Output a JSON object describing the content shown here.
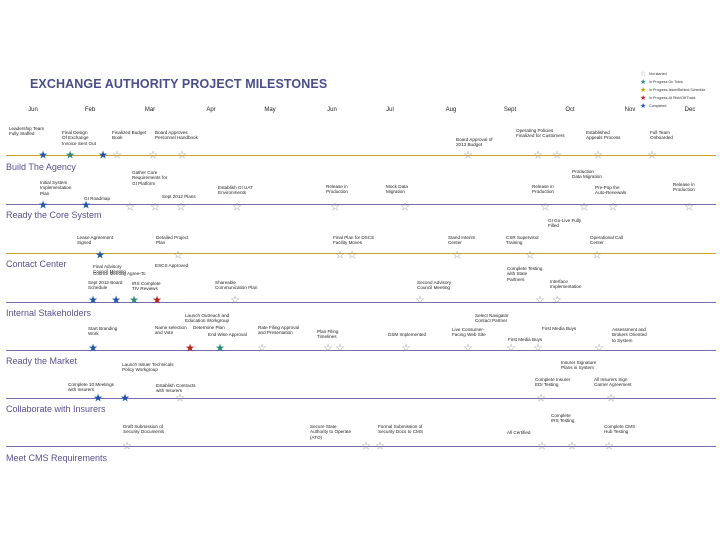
{
  "title": "EXCHANGE AUTHORITY PROJECT MILESTONES",
  "months": [
    "Jun",
    "Feb",
    "Mar",
    "Apr",
    "May",
    "Jun",
    "Jul",
    "Aug",
    "Sept",
    "Oct",
    "Nov",
    "Dec"
  ],
  "colors": {
    "title": "#4a4e8a",
    "lane_text": "#5c4f8c",
    "line_gold": "#c9a227",
    "line_purple": "#7a6aa8",
    "blue": "#1f56a8",
    "red": "#c0201a",
    "teal": "#2a8a78",
    "gold": "#c8a000",
    "empty": "#8e8e8e"
  },
  "legend": [
    {
      "label": "Not started",
      "color": "empty"
    },
    {
      "label": "In Progress On Track",
      "color": "teal"
    },
    {
      "label": "In Progress-Issue/Behind Schedule",
      "color": "gold"
    },
    {
      "label": "In Progress-At Risk/Off Track",
      "color": "red"
    },
    {
      "label": "Completed",
      "color": "blue"
    }
  ],
  "lanes": [
    {
      "label": "Build The Agency",
      "line": "gold"
    },
    {
      "label": "Ready the Core System",
      "line": "purple"
    },
    {
      "label": "Contact Center",
      "line": "gold"
    },
    {
      "label": "Internal Stakeholders",
      "line": "purple"
    },
    {
      "label": "Ready the Market",
      "line": "purple"
    },
    {
      "label": "Collaborate with Insurers",
      "line": "purple"
    },
    {
      "label": "Meet CMS Requirements",
      "line": "purple"
    }
  ],
  "notes": [
    "Leadership Team\nFully Staffed",
    "Final Design\nOf Exchange",
    "Invoice Sent Out",
    "Finalized Budget\nBook",
    "Board Approves\nPersonnel Handbook",
    "Board Approval of\n2013 Budget",
    "Operating Policies\nFinalized for Customers",
    "Established\nAppeals Process",
    "Full Team\nOnboarded",
    "Initial System\nImplementation\nPlan",
    "GI Roadmap",
    "Gather Core\nRequirements for\nGI Platform",
    "Sept 2012 Plans",
    "Establish GI UAT\nEnvironments",
    "Release in\nProduction",
    "Mock Data\nMigration",
    "Release in\nProduction",
    "Production\nData Migration",
    "Pre-Pop the\nAuto-Renewals",
    "Release in\nProduction",
    "GI Go-Live Fully\nFilled",
    "Lease Agreement\nSigned",
    "Detailed Project\nPlan",
    "Final Plan for DSCS\nFacility Moves",
    "Stand Interim\nCenter",
    "CSR Supervisor\nTraining",
    "Operational Call\nCenter",
    "Final Advisory\nCouncil Meeting",
    "Council Meeting Agree-To",
    "Sept 2012 Board\nSchedule",
    "IRS Complete\nTIV Reviews",
    "ESCS Approved",
    "Shareable\nCommunication Plan",
    "Second Advisory\nCouncil Meeting",
    "Complete Testing\nwith State\nPartners",
    "Interface\nImplementation",
    "Launch Outreach and\nEducation Workgroup",
    "Start Branding\nWork",
    "Name selection\nand Vote",
    "Determine Plan",
    "Rate Filing Approval\nand Presentation",
    "End Wise Approval",
    "Plan Filing\nTimelines",
    "DSM Implemented",
    "Select Navigator\nContact Partner",
    "Live Consumer-\nFacing Web Site",
    "First Media Buys",
    "First Media Buys",
    "Assessment and\nBrokers Oriented\nto System",
    "Launch Issuer Technicals\nPolicy Workgroup",
    "Complete 10 Meetings\nwith Insurers",
    "Establish Contracts\nwith Insurers",
    "Complete Insurer\nEDI Testing",
    "All Insurers Sign\nCarrier Agreement",
    "Insurer Signature\nPlans in System",
    "Draft Submission of\nSecurity Documents",
    "Secure State\nAuthority to Operate\n(ATO)",
    "Formal Submission of\nSecurity Docs to CMS",
    "All Certified",
    "Complete\nIRS Testing",
    "Complete CMS\nHub Testing"
  ]
}
